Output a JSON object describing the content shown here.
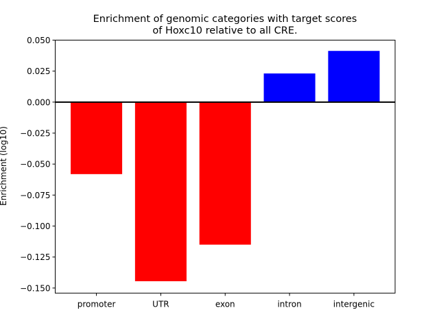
{
  "chart_data": {
    "type": "bar",
    "title": "Enrichment of genomic categories with target scores\nof Hoxc10 relative to all CRE.",
    "title_lines": [
      "Enrichment of genomic categories with target scores",
      "of Hoxc10 relative to all CRE."
    ],
    "xlabel": "",
    "ylabel": "Enrichment (log10)",
    "categories": [
      "promoter",
      "UTR",
      "exon",
      "intron",
      "intergenic"
    ],
    "values": [
      -0.0581,
      -0.1445,
      -0.115,
      0.0231,
      0.0413
    ],
    "colors": [
      "#ff0000",
      "#ff0000",
      "#ff0000",
      "#0000ff",
      "#0000ff"
    ],
    "ylim": [
      -0.1541,
      0.05
    ],
    "yticks": [
      0.05,
      0.025,
      0.0,
      -0.025,
      -0.05,
      -0.075,
      -0.1,
      -0.125,
      -0.15
    ],
    "ytick_labels": [
      "0.050",
      "0.025",
      "0.000",
      "−0.025",
      "−0.050",
      "−0.075",
      "−0.100",
      "−0.125",
      "−0.150"
    ],
    "zero_line": true,
    "grid": false,
    "legend": "none"
  }
}
